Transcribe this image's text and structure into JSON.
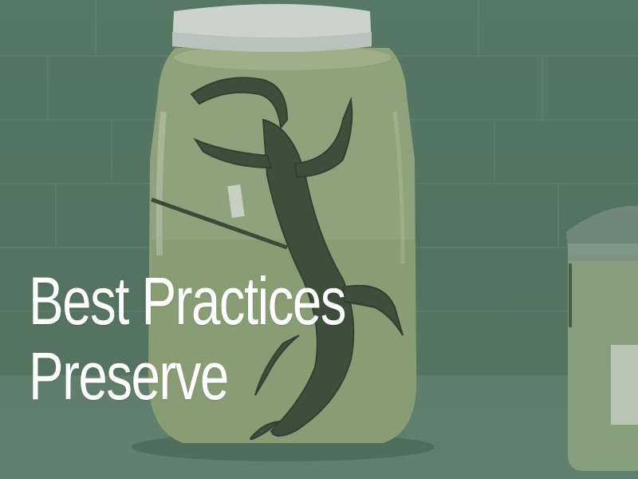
{
  "overlay": {
    "line1": "Best Practices",
    "line2": "Preserve"
  },
  "colors": {
    "tint": "#587764",
    "text": "#ffffff",
    "lid": "#e9ecea"
  }
}
